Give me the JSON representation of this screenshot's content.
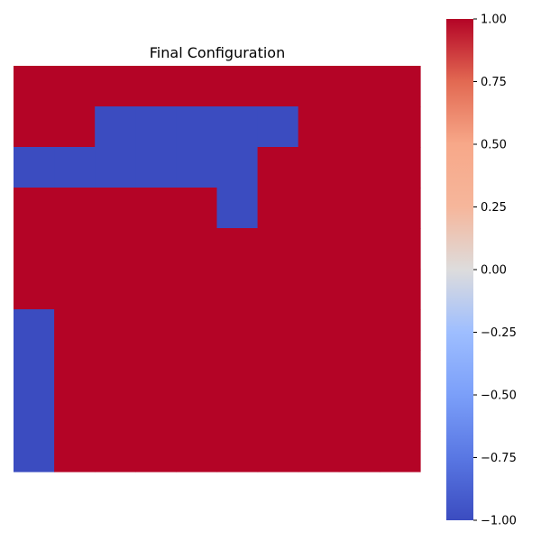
{
  "chart_data": {
    "type": "heatmap",
    "title": "Final Configuration",
    "rows": 10,
    "cols": 10,
    "values": [
      [
        1,
        1,
        1,
        1,
        1,
        1,
        1,
        1,
        1,
        1
      ],
      [
        1,
        1,
        -1,
        -1,
        -1,
        -1,
        -1,
        1,
        1,
        1
      ],
      [
        -1,
        -1,
        -1,
        -1,
        -1,
        -1,
        1,
        1,
        1,
        1
      ],
      [
        1,
        1,
        1,
        1,
        1,
        -1,
        1,
        1,
        1,
        1
      ],
      [
        1,
        1,
        1,
        1,
        1,
        1,
        1,
        1,
        1,
        1
      ],
      [
        1,
        1,
        1,
        1,
        1,
        1,
        1,
        1,
        1,
        1
      ],
      [
        -1,
        1,
        1,
        1,
        1,
        1,
        1,
        1,
        1,
        1
      ],
      [
        -1,
        1,
        1,
        1,
        1,
        1,
        1,
        1,
        1,
        1
      ],
      [
        -1,
        1,
        1,
        1,
        1,
        1,
        1,
        1,
        1,
        1
      ],
      [
        -1,
        1,
        1,
        1,
        1,
        1,
        1,
        1,
        1,
        1
      ]
    ],
    "colormap": "coolwarm",
    "vmin": -1.0,
    "vmax": 1.0,
    "colorbar_ticks": [
      1.0,
      0.75,
      0.5,
      0.25,
      0.0,
      -0.25,
      -0.5,
      -0.75,
      -1.0
    ],
    "colorbar_tick_labels": [
      "1.00",
      "0.75",
      "0.50",
      "0.25",
      "0.00",
      "−0.25",
      "−0.50",
      "−0.75",
      "−1.00"
    ],
    "axes_ticks_visible": false,
    "colors": {
      "positive": "#b40426",
      "negative": "#3b4cc0"
    }
  }
}
